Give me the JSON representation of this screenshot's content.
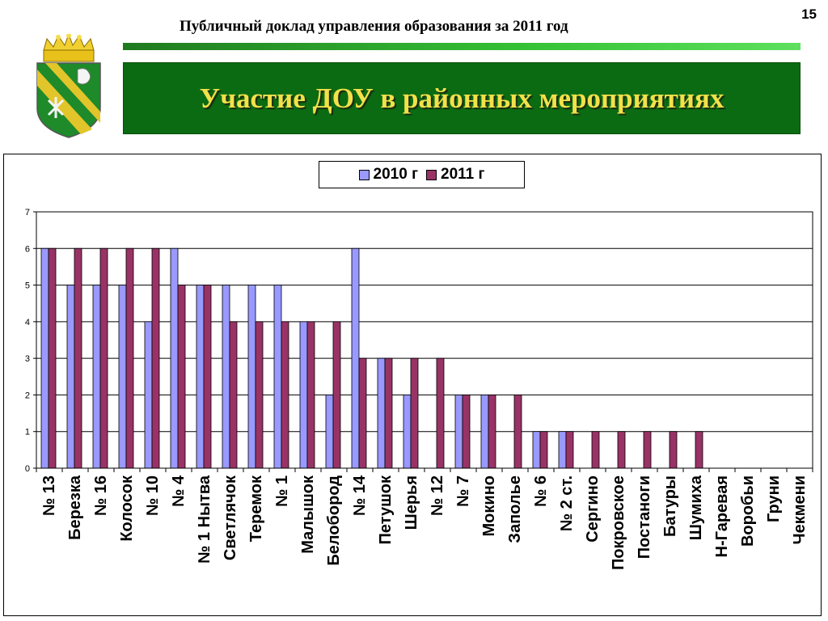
{
  "slide": {
    "page_number": "15",
    "header": "Публичный доклад управления образования за 2011 год",
    "title": "Участие ДОУ в районных мероприятиях"
  },
  "colors": {
    "series_2010": "#9999ff",
    "series_2011": "#993366",
    "banner_bg": "#0b6b12",
    "banner_text": "#f2e14a"
  },
  "emblem": {
    "icon": "coat-of-arms-icon"
  },
  "chart_data": {
    "type": "bar",
    "categories": [
      "№ 13",
      "Березка",
      "№ 16",
      "Колосок",
      "№ 10",
      "№ 4",
      "№ 1 Нытва",
      "Светлячок",
      "Теремок",
      "№ 1",
      "Малышок",
      "Белобород",
      "№ 14",
      "Петушок",
      "Шерья",
      "№ 12",
      "№ 7",
      "Мокино",
      "Заполье",
      "№ 6",
      "№ 2 ст.",
      "Сергино",
      "Покровское",
      "Постаноги",
      "Батуры",
      "Шумиха",
      "Н-Гаревая",
      "Воробьи",
      "Груни",
      "Чекмени"
    ],
    "series": [
      {
        "name": "2010 г",
        "values": [
          6,
          5,
          5,
          5,
          4,
          6,
          5,
          5,
          5,
          5,
          4,
          2,
          6,
          3,
          2,
          0,
          2,
          2,
          0,
          1,
          1,
          0,
          0,
          0,
          0,
          0,
          0,
          0,
          0,
          0
        ]
      },
      {
        "name": "2011 г",
        "values": [
          6,
          6,
          6,
          6,
          6,
          5,
          5,
          4,
          4,
          4,
          4,
          4,
          3,
          3,
          3,
          3,
          2,
          2,
          2,
          1,
          1,
          1,
          1,
          1,
          1,
          1,
          0,
          0,
          0,
          0
        ]
      }
    ],
    "ylim": [
      0,
      7
    ],
    "yticks": [
      0,
      1,
      2,
      3,
      4,
      5,
      6,
      7
    ],
    "grid": true,
    "legend_position": "top"
  }
}
